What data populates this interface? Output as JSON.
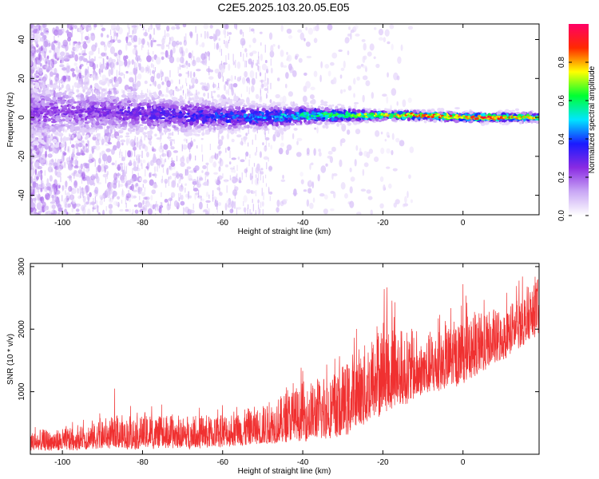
{
  "figure": {
    "title": "C2E5.2025.103.20.05.E05"
  },
  "chart_data": [
    {
      "type": "heatmap",
      "xlabel": "Height of straight line (km)",
      "ylabel": "Frequency (Hz)",
      "xlim": [
        -108,
        19
      ],
      "ylim": [
        -50,
        48
      ],
      "x_ticks": [
        -100,
        -80,
        -60,
        -40,
        -20,
        0
      ],
      "y_ticks": [
        -40,
        -20,
        0,
        20,
        40
      ],
      "colorbar": {
        "label": "Normalized spectral amplitude",
        "range": [
          0.0,
          1.0
        ],
        "ticks": [
          "0.0",
          "0.2",
          "0.4",
          "0.6",
          "0.8"
        ],
        "colors": [
          "#ffffff",
          "#c9a8f5",
          "#8a2be2",
          "#1a1aff",
          "#00e5ff",
          "#00ff33",
          "#ffff00",
          "#ff2a00",
          "#ff0066"
        ]
      },
      "ridge": [
        {
          "x": -95,
          "y": 3,
          "amp": 0.25
        },
        {
          "x": -80,
          "y": 2,
          "amp": 0.3
        },
        {
          "x": -70,
          "y": 1,
          "amp": 0.35
        },
        {
          "x": -60,
          "y": 0.5,
          "amp": 0.4
        },
        {
          "x": -50,
          "y": 0,
          "amp": 0.45
        },
        {
          "x": -40,
          "y": 1,
          "amp": 0.55
        },
        {
          "x": -30,
          "y": 1,
          "amp": 0.65
        },
        {
          "x": -20,
          "y": 1,
          "amp": 0.75
        },
        {
          "x": -10,
          "y": 1,
          "amp": 0.85
        },
        {
          "x": 0,
          "y": 0,
          "amp": 0.8
        },
        {
          "x": 5,
          "y": 0,
          "amp": 0.95
        },
        {
          "x": 15,
          "y": 0,
          "amp": 0.75
        }
      ]
    },
    {
      "type": "line",
      "xlabel": "Height of straight line (km)",
      "ylabel": "SNR (10 * v/v)",
      "xlim": [
        -108,
        19
      ],
      "ylim": [
        0,
        3050
      ],
      "x_ticks": [
        -100,
        -80,
        -60,
        -40,
        -20,
        0
      ],
      "y_ticks": [
        1000,
        2000,
        3000
      ],
      "series": [
        {
          "color": "#f03030",
          "envelope": [
            {
              "x": -108,
              "low": 50,
              "high": 400
            },
            {
              "x": -100,
              "low": 50,
              "high": 450
            },
            {
              "x": -90,
              "low": 80,
              "high": 600
            },
            {
              "x": -80,
              "low": 80,
              "high": 700
            },
            {
              "x": -70,
              "low": 80,
              "high": 650
            },
            {
              "x": -60,
              "low": 100,
              "high": 700
            },
            {
              "x": -50,
              "low": 150,
              "high": 850
            },
            {
              "x": -40,
              "low": 200,
              "high": 1200
            },
            {
              "x": -30,
              "low": 250,
              "high": 1500
            },
            {
              "x": -20,
              "low": 600,
              "high": 2300
            },
            {
              "x": -10,
              "low": 900,
              "high": 2000
            },
            {
              "x": 0,
              "low": 1100,
              "high": 2300
            },
            {
              "x": 10,
              "low": 1500,
              "high": 2400
            },
            {
              "x": 19,
              "low": 1900,
              "high": 2900
            }
          ],
          "peaks": [
            {
              "x": -87,
              "y": 1170
            },
            {
              "x": -40,
              "y": 1420
            },
            {
              "x": -34,
              "y": 1620
            },
            {
              "x": -19,
              "y": 2780
            },
            {
              "x": -17,
              "y": 2720
            },
            {
              "x": -3,
              "y": 2500
            },
            {
              "x": 0,
              "y": 2880
            },
            {
              "x": 14,
              "y": 2830
            },
            {
              "x": 18,
              "y": 3000
            }
          ]
        }
      ]
    }
  ]
}
